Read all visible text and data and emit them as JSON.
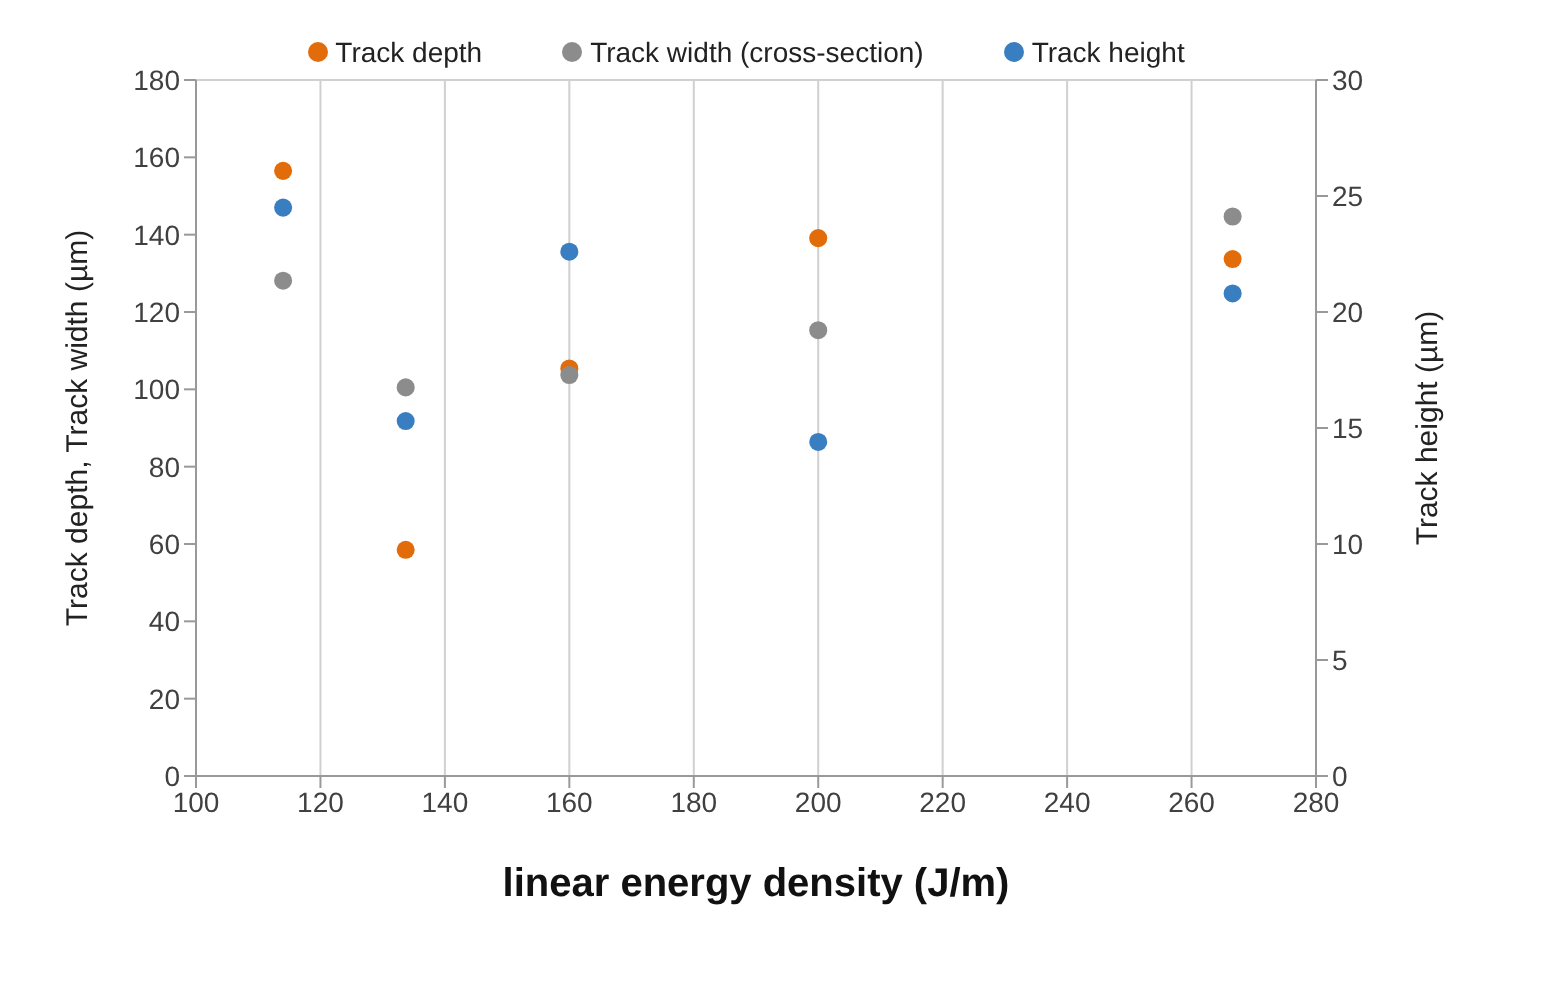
{
  "chart_data": {
    "type": "scatter",
    "xlabel": "linear energy density (J/m)",
    "ylabel": "Track depth, Track width (µm)",
    "y2label": "Track height (µm)",
    "x": [
      114,
      133.7,
      160,
      200,
      266.6
    ],
    "series": [
      {
        "name": "Track depth",
        "color": "#e36c0a",
        "values": [
          156.5,
          58.5,
          105.4,
          139.1,
          133.7
        ]
      },
      {
        "name": "Track width (cross-section)",
        "color": "#8c8c8c",
        "values": [
          128.1,
          100.5,
          103.7,
          115.3,
          144.7
        ]
      },
      {
        "name": "Track height",
        "color": "#3a7ec2",
        "values": [
          24.5,
          15.3,
          22.6,
          14.4,
          20.8
        ],
        "axis": "y2"
      }
    ],
    "xlim": [
      100,
      280
    ],
    "xticks": [
      100,
      120,
      140,
      160,
      180,
      200,
      220,
      240,
      260,
      280
    ],
    "ylim": [
      0,
      180
    ],
    "yticks": [
      0,
      20,
      40,
      60,
      80,
      100,
      120,
      140,
      160,
      180
    ],
    "y2lim": [
      0,
      30
    ],
    "y2ticks": [
      0,
      5,
      10,
      15,
      20,
      25,
      30
    ],
    "grid": true,
    "legend": "top",
    "marker": "circle"
  }
}
